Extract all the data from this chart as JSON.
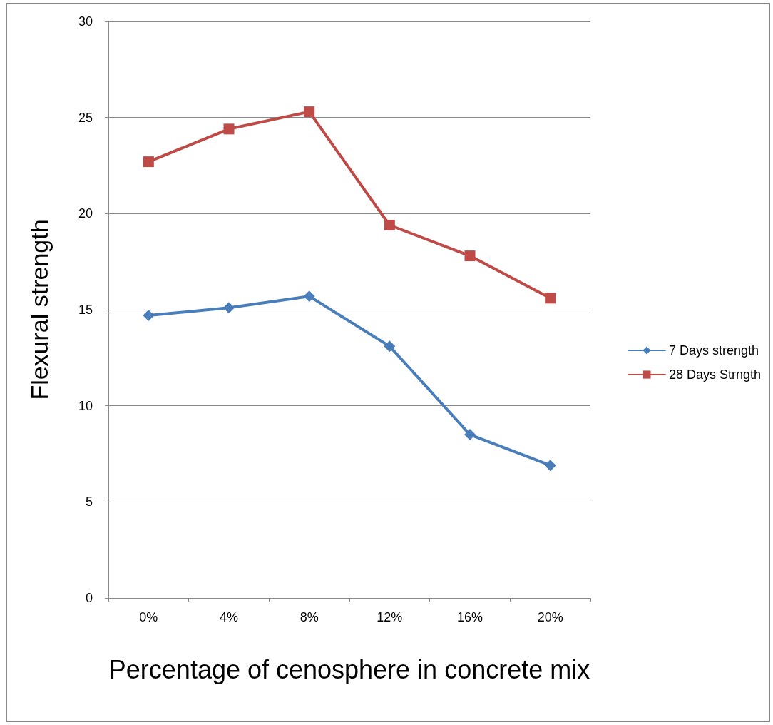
{
  "chart_data": {
    "type": "line",
    "xlabel": "Percentage of cenosphere in concrete mix",
    "ylabel": "Flexural strength",
    "categories": [
      "0%",
      "4%",
      "8%",
      "12%",
      "16%",
      "20%"
    ],
    "series": [
      {
        "name": "7 Days strength",
        "color": "#4a7ebb",
        "marker": "diamond",
        "values": [
          14.7,
          15.1,
          15.7,
          13.1,
          8.5,
          6.9
        ]
      },
      {
        "name": "28 Days Strngth",
        "color": "#be4b48",
        "marker": "square",
        "values": [
          22.7,
          24.4,
          25.3,
          19.4,
          17.8,
          15.6
        ]
      }
    ],
    "ylim": [
      0,
      30
    ],
    "yticks": [
      0,
      5,
      10,
      15,
      20,
      25,
      30
    ],
    "grid": "y",
    "legend": "right",
    "line_style": "solid"
  }
}
